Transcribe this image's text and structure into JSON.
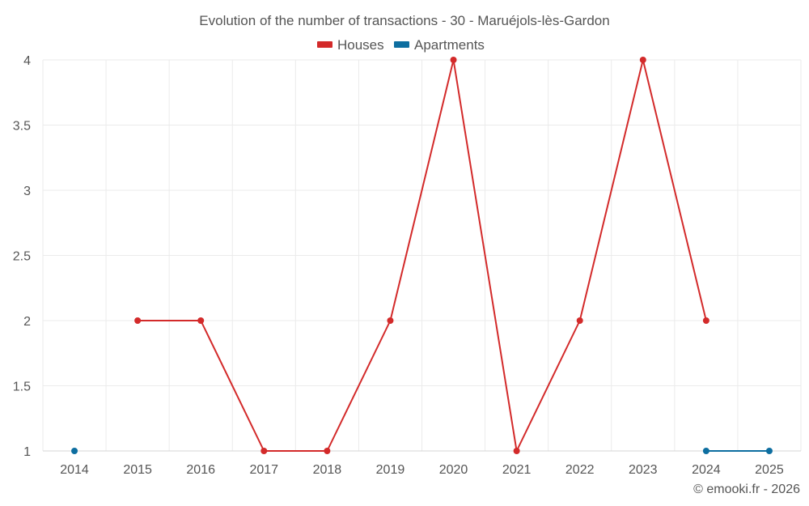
{
  "chart_data": {
    "type": "line",
    "title": "Evolution of the number of transactions - 30 - Maruéjols-lès-Gardon",
    "categories": [
      "2014",
      "2015",
      "2016",
      "2017",
      "2018",
      "2019",
      "2020",
      "2021",
      "2022",
      "2023",
      "2024",
      "2025"
    ],
    "ylim": [
      1,
      4
    ],
    "yticks": [
      "1",
      "1.5",
      "2",
      "2.5",
      "3",
      "3.5",
      "4"
    ],
    "series": [
      {
        "name": "Houses",
        "color": "#d32a2a",
        "values": [
          null,
          2,
          2,
          1,
          1,
          2,
          4,
          1,
          2,
          4,
          2,
          null
        ]
      },
      {
        "name": "Apartments",
        "color": "#0d6ea0",
        "values": [
          1,
          null,
          null,
          null,
          null,
          null,
          null,
          null,
          null,
          null,
          1,
          1
        ]
      }
    ],
    "legend_position": "top-center",
    "grid": true
  },
  "credit": "© emooki.fr - 2026"
}
